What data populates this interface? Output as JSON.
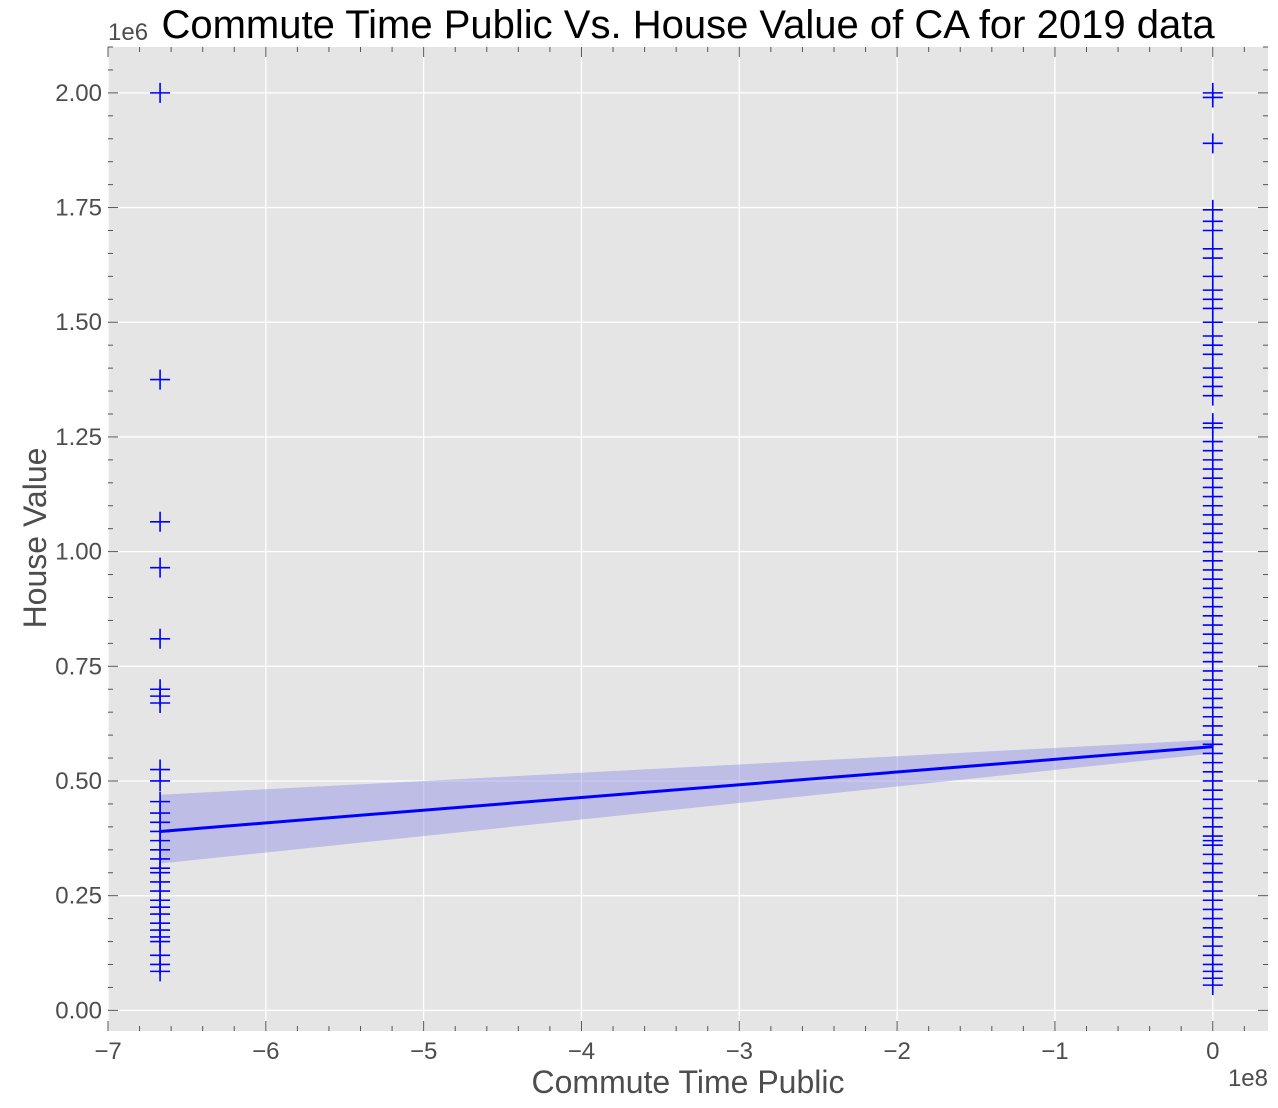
{
  "chart_data": {
    "type": "scatter",
    "title": "Commute Time Public  Vs. House Value of CA for 2019 data",
    "xlabel": "Commute Time Public",
    "ylabel": "House Value",
    "x_offset_label": "1e8",
    "y_offset_label": "1e6",
    "xlim": [
      -7.0,
      0.35
    ],
    "ylim": [
      -0.045,
      2.1
    ],
    "x_ticks": [
      -7,
      -6,
      -5,
      -4,
      -3,
      -2,
      -1,
      0
    ],
    "x_tick_labels": [
      "−7",
      "−6",
      "−5",
      "−4",
      "−3",
      "−2",
      "−1",
      "0"
    ],
    "y_ticks": [
      0.0,
      0.25,
      0.5,
      0.75,
      1.0,
      1.25,
      1.5,
      1.75,
      2.0
    ],
    "y_tick_labels": [
      "0.00",
      "0.25",
      "0.50",
      "0.75",
      "1.00",
      "1.25",
      "1.50",
      "1.75",
      "2.00"
    ],
    "grid": true,
    "marker": "plus",
    "colors": {
      "points": "#0000ff",
      "line": "#0000ff",
      "band": "#8c8ce6",
      "plot_bg": "#e5e5e5",
      "grid": "#ffffff"
    },
    "series": [
      {
        "x": -6.67,
        "y": [
          2.0,
          1.375,
          1.065,
          0.965,
          0.81,
          0.7,
          0.685,
          0.67,
          0.525,
          0.5,
          0.455,
          0.43,
          0.41,
          0.39,
          0.37,
          0.35,
          0.33,
          0.31,
          0.3,
          0.28,
          0.26,
          0.24,
          0.225,
          0.21,
          0.19,
          0.175,
          0.16,
          0.15,
          0.12,
          0.1,
          0.085
        ]
      },
      {
        "x": 0.0,
        "y": [
          2.0,
          1.99,
          1.89,
          1.745,
          1.72,
          1.7,
          1.66,
          1.64,
          1.6,
          1.57,
          1.55,
          1.53,
          1.5,
          1.47,
          1.45,
          1.43,
          1.4,
          1.38,
          1.36,
          1.34,
          1.28,
          1.27,
          1.24,
          1.22,
          1.2,
          1.18,
          1.16,
          1.14,
          1.12,
          1.1,
          1.08,
          1.06,
          1.04,
          1.02,
          1.0,
          0.98,
          0.96,
          0.94,
          0.92,
          0.9,
          0.88,
          0.86,
          0.84,
          0.82,
          0.8,
          0.78,
          0.76,
          0.74,
          0.72,
          0.7,
          0.68,
          0.66,
          0.64,
          0.62,
          0.6,
          0.58,
          0.56,
          0.54,
          0.52,
          0.5,
          0.48,
          0.46,
          0.44,
          0.42,
          0.4,
          0.38,
          0.37,
          0.36,
          0.34,
          0.32,
          0.3,
          0.28,
          0.26,
          0.24,
          0.22,
          0.2,
          0.18,
          0.16,
          0.14,
          0.12,
          0.1,
          0.085,
          0.07,
          0.055
        ]
      }
    ],
    "regression": {
      "x": [
        -6.67,
        0.0
      ],
      "y": [
        0.39,
        0.575
      ],
      "ci_lower": [
        0.32,
        0.56
      ],
      "ci_upper": [
        0.47,
        0.59
      ]
    }
  }
}
